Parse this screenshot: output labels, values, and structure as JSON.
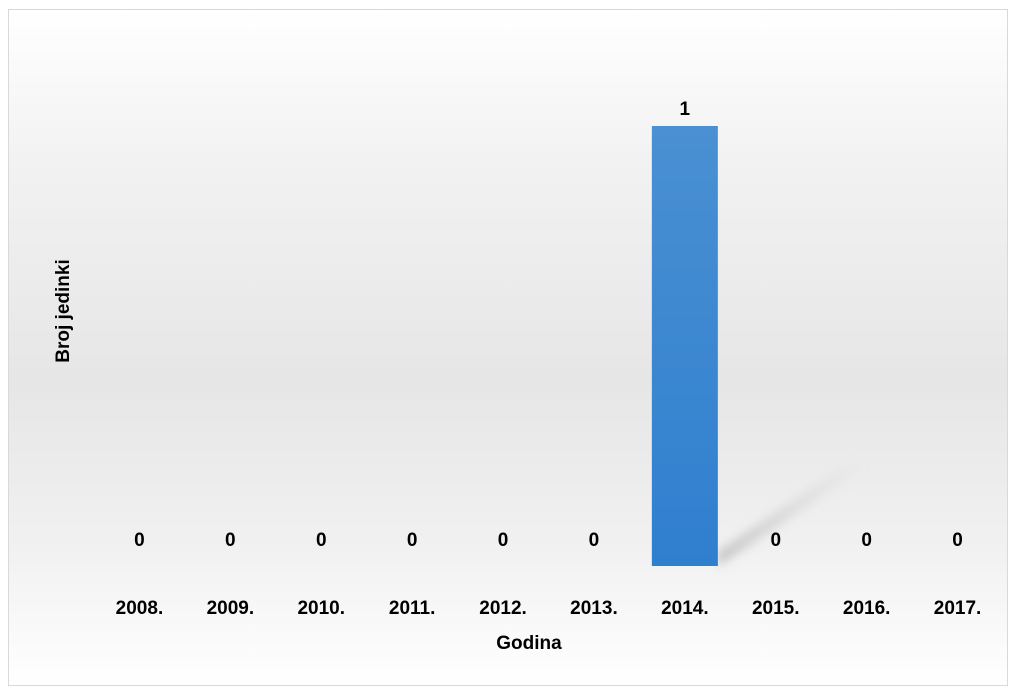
{
  "chart_data": {
    "type": "bar",
    "title": "",
    "xlabel": "Godina",
    "ylabel": "Broj jedinki",
    "categories": [
      "2008.",
      "2009.",
      "2010.",
      "2011.",
      "2012.",
      "2013.",
      "2014.",
      "2015.",
      "2016.",
      "2017."
    ],
    "series": [
      {
        "values": [
          0,
          0,
          0,
          0,
          0,
          0,
          1,
          0,
          0,
          0
        ]
      }
    ],
    "data_labels": [
      "0",
      "0",
      "0",
      "0",
      "0",
      "0",
      "1",
      "0",
      "0",
      "0"
    ],
    "ylim": [
      0,
      1
    ],
    "grid": false,
    "legend": "none",
    "bar_color": "#4a90d2",
    "bar_color_bottom": "#2f7fcf"
  }
}
